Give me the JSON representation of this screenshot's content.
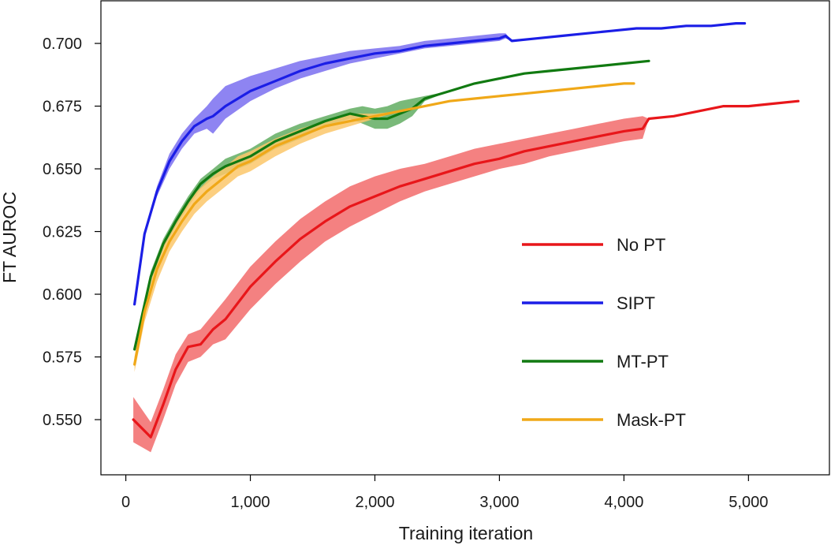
{
  "chart_data": {
    "type": "line",
    "title": "",
    "xlabel": "Training iteration",
    "ylabel": "FT AUROC",
    "xlim": [
      -200,
      5650
    ],
    "ylim": [
      0.528,
      0.717
    ],
    "x_ticks": [
      0,
      1000,
      2000,
      3000,
      4000,
      5000
    ],
    "x_tick_labels": [
      "0",
      "1,000",
      "2,000",
      "3,000",
      "4,000",
      "5,000"
    ],
    "y_ticks": [
      0.55,
      0.575,
      0.6,
      0.625,
      0.65,
      0.675,
      0.7
    ],
    "y_tick_labels": [
      "0.550",
      "0.575",
      "0.600",
      "0.625",
      "0.650",
      "0.675",
      "0.700"
    ],
    "grid": false,
    "legend_position": "lower-right",
    "series": [
      {
        "name": "No PT",
        "color": "#e8161a",
        "band_color": "#f26b6b",
        "x": [
          60,
          200,
          300,
          400,
          500,
          600,
          700,
          800,
          1000,
          1200,
          1400,
          1600,
          1800,
          2000,
          2200,
          2400,
          2600,
          2800,
          3000,
          3200,
          3400,
          3600,
          3800,
          4000,
          4150,
          4200,
          4400,
          4600,
          4800,
          5000,
          5200,
          5400
        ],
        "y": [
          0.55,
          0.543,
          0.556,
          0.57,
          0.579,
          0.58,
          0.586,
          0.59,
          0.603,
          0.613,
          0.622,
          0.629,
          0.635,
          0.639,
          0.643,
          0.646,
          0.649,
          0.652,
          0.654,
          0.657,
          0.659,
          0.661,
          0.663,
          0.665,
          0.666,
          0.67,
          0.671,
          0.673,
          0.675,
          0.675,
          0.676,
          0.677
        ],
        "lower": [
          0.541,
          0.537,
          0.55,
          0.564,
          0.573,
          0.575,
          0.58,
          0.582,
          0.594,
          0.604,
          0.613,
          0.621,
          0.627,
          0.632,
          0.637,
          0.641,
          0.644,
          0.647,
          0.65,
          0.652,
          0.655,
          0.657,
          0.659,
          0.661,
          0.662,
          0.67,
          0.671,
          0.673,
          0.675,
          0.675,
          0.676,
          0.677
        ],
        "upper": [
          0.559,
          0.549,
          0.562,
          0.576,
          0.584,
          0.586,
          0.592,
          0.598,
          0.611,
          0.621,
          0.63,
          0.637,
          0.643,
          0.647,
          0.65,
          0.652,
          0.655,
          0.658,
          0.66,
          0.662,
          0.664,
          0.666,
          0.668,
          0.67,
          0.671,
          0.67,
          0.671,
          0.673,
          0.675,
          0.675,
          0.676,
          0.677
        ]
      },
      {
        "name": "SIPT",
        "color": "#1b1ee6",
        "band_color": "#7a6ff0",
        "x": [
          70,
          150,
          250,
          350,
          450,
          550,
          650,
          700,
          800,
          1000,
          1200,
          1400,
          1600,
          1800,
          2000,
          2200,
          2400,
          2600,
          2800,
          3000,
          3050,
          3100,
          3300,
          3500,
          3700,
          3900,
          4100,
          4300,
          4500,
          4700,
          4900,
          4970
        ],
        "y": [
          0.596,
          0.624,
          0.641,
          0.653,
          0.661,
          0.667,
          0.67,
          0.671,
          0.675,
          0.681,
          0.685,
          0.689,
          0.692,
          0.694,
          0.696,
          0.697,
          0.699,
          0.7,
          0.701,
          0.702,
          0.703,
          0.701,
          0.702,
          0.703,
          0.704,
          0.705,
          0.706,
          0.706,
          0.707,
          0.707,
          0.708,
          0.708
        ],
        "lower": [
          0.596,
          0.623,
          0.639,
          0.65,
          0.658,
          0.664,
          0.666,
          0.664,
          0.67,
          0.677,
          0.682,
          0.686,
          0.689,
          0.692,
          0.694,
          0.696,
          0.698,
          0.699,
          0.7,
          0.701,
          0.702,
          0.701,
          0.702,
          0.703,
          0.704,
          0.705,
          0.706,
          0.706,
          0.707,
          0.707,
          0.708,
          0.708
        ],
        "upper": [
          0.596,
          0.625,
          0.643,
          0.656,
          0.664,
          0.67,
          0.675,
          0.678,
          0.683,
          0.687,
          0.69,
          0.693,
          0.695,
          0.697,
          0.698,
          0.699,
          0.701,
          0.702,
          0.703,
          0.704,
          0.704,
          0.701,
          0.702,
          0.703,
          0.704,
          0.705,
          0.706,
          0.706,
          0.707,
          0.707,
          0.708,
          0.708
        ]
      },
      {
        "name": "MT-PT",
        "color": "#117a11",
        "band_color": "#62ad62",
        "x": [
          70,
          200,
          300,
          400,
          500,
          600,
          700,
          800,
          1000,
          1200,
          1400,
          1600,
          1800,
          1900,
          2000,
          2100,
          2200,
          2300,
          2400,
          2600,
          2800,
          3000,
          3200,
          3400,
          3600,
          3800,
          4000,
          4200
        ],
        "y": [
          0.578,
          0.607,
          0.62,
          0.629,
          0.637,
          0.644,
          0.648,
          0.651,
          0.655,
          0.661,
          0.665,
          0.669,
          0.672,
          0.671,
          0.67,
          0.67,
          0.672,
          0.674,
          0.678,
          0.681,
          0.684,
          0.686,
          0.688,
          0.689,
          0.69,
          0.691,
          0.692,
          0.693
        ],
        "lower": [
          0.578,
          0.605,
          0.618,
          0.627,
          0.635,
          0.642,
          0.646,
          0.648,
          0.652,
          0.658,
          0.662,
          0.667,
          0.67,
          0.668,
          0.666,
          0.666,
          0.668,
          0.671,
          0.677,
          0.681,
          0.684,
          0.686,
          0.688,
          0.689,
          0.69,
          0.691,
          0.692,
          0.693
        ],
        "upper": [
          0.578,
          0.609,
          0.622,
          0.631,
          0.639,
          0.646,
          0.65,
          0.654,
          0.658,
          0.664,
          0.668,
          0.671,
          0.674,
          0.675,
          0.674,
          0.675,
          0.677,
          0.678,
          0.679,
          0.681,
          0.684,
          0.686,
          0.688,
          0.689,
          0.69,
          0.691,
          0.692,
          0.693
        ]
      },
      {
        "name": "Mask-PT",
        "color": "#f0a818",
        "band_color": "#fbc76a",
        "x": [
          70,
          150,
          250,
          350,
          450,
          550,
          650,
          750,
          900,
          1000,
          1200,
          1400,
          1600,
          1800,
          2000,
          2200,
          2400,
          2600,
          2800,
          3000,
          3200,
          3400,
          3600,
          3800,
          4000,
          4080
        ],
        "y": [
          0.572,
          0.593,
          0.61,
          0.621,
          0.629,
          0.636,
          0.641,
          0.645,
          0.651,
          0.653,
          0.659,
          0.663,
          0.667,
          0.669,
          0.671,
          0.673,
          0.675,
          0.677,
          0.678,
          0.679,
          0.68,
          0.681,
          0.682,
          0.683,
          0.684,
          0.684
        ],
        "lower": [
          0.569,
          0.589,
          0.605,
          0.617,
          0.625,
          0.632,
          0.637,
          0.641,
          0.647,
          0.649,
          0.655,
          0.66,
          0.664,
          0.667,
          0.67,
          0.673,
          0.675,
          0.677,
          0.678,
          0.679,
          0.68,
          0.681,
          0.682,
          0.683,
          0.684,
          0.684
        ],
        "upper": [
          0.575,
          0.597,
          0.614,
          0.625,
          0.633,
          0.64,
          0.645,
          0.649,
          0.655,
          0.657,
          0.662,
          0.666,
          0.669,
          0.672,
          0.672,
          0.673,
          0.675,
          0.677,
          0.678,
          0.679,
          0.68,
          0.681,
          0.682,
          0.683,
          0.684,
          0.684
        ]
      }
    ]
  }
}
